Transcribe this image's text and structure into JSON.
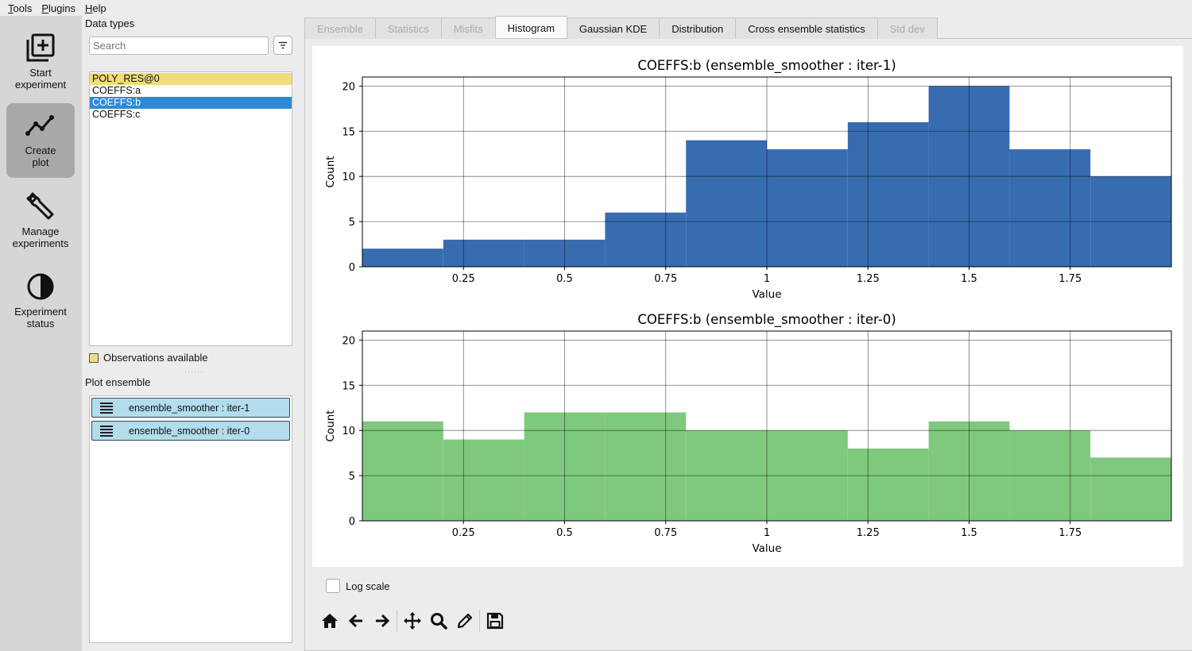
{
  "menubar": {
    "items": [
      {
        "label": "Tools",
        "mnemonic": "T",
        "rest": "ools"
      },
      {
        "label": "Plugins",
        "mnemonic": "P",
        "rest": "lugins"
      },
      {
        "label": "Help",
        "mnemonic": "H",
        "rest": "elp"
      }
    ]
  },
  "sidebar": {
    "buttons": [
      {
        "label1": "Start",
        "label2": "experiment",
        "icon": "add-box-icon"
      },
      {
        "label1": "Create",
        "label2": "plot",
        "icon": "line-chart-icon",
        "active": true
      },
      {
        "label1": "Manage",
        "label2": "experiments",
        "icon": "wrench-icon"
      },
      {
        "label1": "Experiment",
        "label2": "status",
        "icon": "contrast-icon"
      }
    ]
  },
  "data_types": {
    "title": "Data types",
    "search_placeholder": "Search",
    "items": [
      {
        "label": "POLY_RES@0",
        "state": "observations"
      },
      {
        "label": "COEFFS:a",
        "state": "normal"
      },
      {
        "label": "COEFFS:b",
        "state": "selected"
      },
      {
        "label": "COEFFS:c",
        "state": "normal"
      }
    ],
    "observations_legend": "Observations available"
  },
  "plot_ensemble": {
    "title": "Plot ensemble",
    "items": [
      "ensemble_smoother : iter-1",
      "ensemble_smoother : iter-0"
    ]
  },
  "tabs": [
    {
      "label": "Ensemble",
      "state": "disabled"
    },
    {
      "label": "Statistics",
      "state": "disabled"
    },
    {
      "label": "Misfits",
      "state": "disabled"
    },
    {
      "label": "Histogram",
      "state": "active"
    },
    {
      "label": "Gaussian KDE",
      "state": "normal"
    },
    {
      "label": "Distribution",
      "state": "normal"
    },
    {
      "label": "Cross ensemble statistics",
      "state": "normal"
    },
    {
      "label": "Std dev",
      "state": "disabled"
    }
  ],
  "log_scale_label": "Log scale",
  "toolbar": {
    "tools": [
      "home-icon",
      "back-arrow-icon",
      "forward-arrow-icon",
      "pan-icon",
      "zoom-icon",
      "edit-icon",
      "save-icon"
    ]
  },
  "colors": {
    "series_iter1": "#386cb0",
    "series_iter0": "#7fc97f",
    "selection": "#2f8ad3",
    "observations": "#f0dc7a"
  },
  "chart_data": [
    {
      "type": "bar",
      "title": "COEFFS:b (ensemble_smoother : iter-1)",
      "xlabel": "Value",
      "ylabel": "Count",
      "bin_edges": [
        0.0,
        0.2,
        0.4,
        0.6,
        0.8,
        1.0,
        1.2,
        1.4,
        1.6,
        1.8,
        2.0
      ],
      "values": [
        2,
        3,
        3,
        6,
        14,
        13,
        16,
        20,
        13,
        10
      ],
      "xlim": [
        0.0,
        2.0
      ],
      "ylim": [
        0,
        21
      ],
      "xticks": [
        0.25,
        0.5,
        0.75,
        1,
        1.25,
        1.5,
        1.75
      ],
      "xtick_labels": [
        "0.25",
        "0.5",
        "0.75",
        "1",
        "1.25",
        "1.5",
        "1.75"
      ],
      "yticks": [
        0,
        5,
        10,
        15,
        20
      ],
      "ytick_labels": [
        "0",
        "5",
        "10",
        "15",
        "20"
      ],
      "grid": true,
      "color": "#386cb0"
    },
    {
      "type": "bar",
      "title": "COEFFS:b (ensemble_smoother : iter-0)",
      "xlabel": "Value",
      "ylabel": "Count",
      "bin_edges": [
        0.0,
        0.2,
        0.4,
        0.6,
        0.8,
        1.0,
        1.2,
        1.4,
        1.6,
        1.8,
        2.0
      ],
      "values": [
        11,
        9,
        12,
        12,
        10,
        10,
        8,
        11,
        10,
        7
      ],
      "xlim": [
        0.0,
        2.0
      ],
      "ylim": [
        0,
        21
      ],
      "xticks": [
        0.25,
        0.5,
        0.75,
        1,
        1.25,
        1.5,
        1.75
      ],
      "xtick_labels": [
        "0.25",
        "0.5",
        "0.75",
        "1",
        "1.25",
        "1.5",
        "1.75"
      ],
      "yticks": [
        0,
        5,
        10,
        15,
        20
      ],
      "ytick_labels": [
        "0",
        "5",
        "10",
        "15",
        "20"
      ],
      "grid": true,
      "color": "#7fc97f"
    }
  ]
}
